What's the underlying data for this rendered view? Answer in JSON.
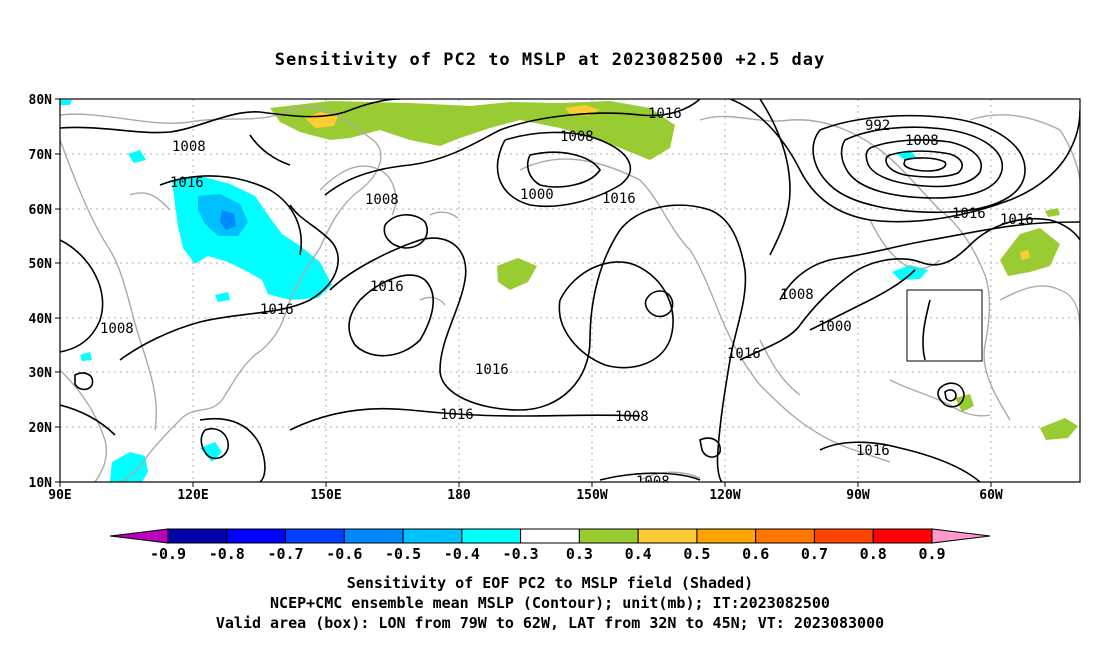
{
  "title": "Sensitivity of PC2 to MSLP at 2023082500 +2.5 day",
  "map": {
    "lon_ticks": [
      "90E",
      "120E",
      "150E",
      "180",
      "150W",
      "120W",
      "90W",
      "60W"
    ],
    "lat_ticks": [
      "80N",
      "70N",
      "60N",
      "50N",
      "40N",
      "30N",
      "20N",
      "10N"
    ],
    "contour_labels": [
      "1008",
      "1016",
      "1008",
      "1016",
      "1008",
      "1000",
      "1016",
      "1008",
      "1016",
      "1016",
      "1016",
      "1016",
      "1008",
      "1016",
      "1008",
      "1000",
      "992",
      "1008",
      "1016",
      "1016",
      "1016",
      "1008"
    ],
    "box_bounds": {
      "lon_west": "79W",
      "lon_east": "62W",
      "lat_south": "32N",
      "lat_north": "45N"
    }
  },
  "colorbar": {
    "labels": [
      "-0.9",
      "-0.8",
      "-0.7",
      "-0.6",
      "-0.5",
      "-0.4",
      "-0.3",
      "0.3",
      "0.4",
      "0.5",
      "0.6",
      "0.7",
      "0.8",
      "0.9"
    ],
    "colors": [
      "#bb00bb",
      "#0000aa",
      "#0000ff",
      "#0040ff",
      "#0088ff",
      "#00c0ff",
      "#00ffff",
      "#ffffff",
      "#99cc33",
      "#ffcc33",
      "#ffa500",
      "#ff7700",
      "#ff4400",
      "#ff0000",
      "#ff99cc"
    ]
  },
  "footer": {
    "line1": "Sensitivity of EOF PC2 to MSLP field (Shaded)",
    "line2": "NCEP+CMC ensemble mean MSLP (Contour); unit(mb); IT:2023082500",
    "line3": "Valid area (box): LON from 79W to 62W, LAT from 32N to 45N; VT: 2023083000"
  }
}
